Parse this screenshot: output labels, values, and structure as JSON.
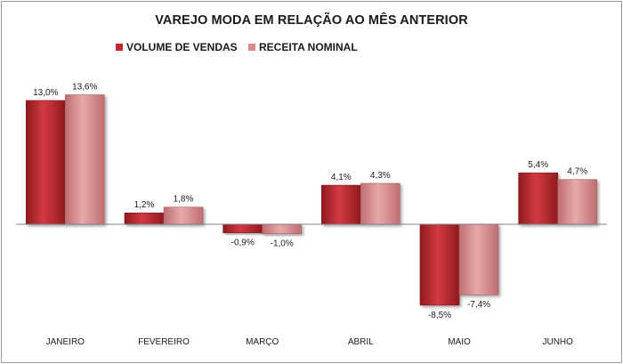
{
  "chart_data": {
    "type": "bar",
    "title": "VAREJO MODA EM RELAÇÃO AO MÊS ANTERIOR",
    "categories": [
      "JANEIRO",
      "FEVEREIRO",
      "MARÇO",
      "ABRIL",
      "MAIO",
      "JUNHO"
    ],
    "series": [
      {
        "name": "VOLUME DE VENDAS",
        "values": [
          13.0,
          1.2,
          -0.9,
          4.1,
          -8.5,
          5.4
        ],
        "labels": [
          "13,0%",
          "1,2%",
          "-0,9%",
          "4,1%",
          "-8,5%",
          "5,4%"
        ],
        "color": "#c1272d",
        "gradient": [
          "#8f1a1f",
          "#d23a40"
        ]
      },
      {
        "name": "RECEITA NOMINAL",
        "values": [
          13.6,
          1.8,
          -1.0,
          4.3,
          -7.4,
          4.7
        ],
        "labels": [
          "13,6%",
          "1,8%",
          "-1,0%",
          "4,3%",
          "-7,4%",
          "4,7%"
        ],
        "color": "#d98a8d",
        "gradient": [
          "#c06d71",
          "#e6a9ab"
        ]
      }
    ],
    "ylim": [
      -8.5,
      13.6
    ],
    "grid": false,
    "legend_position": "top-center"
  }
}
